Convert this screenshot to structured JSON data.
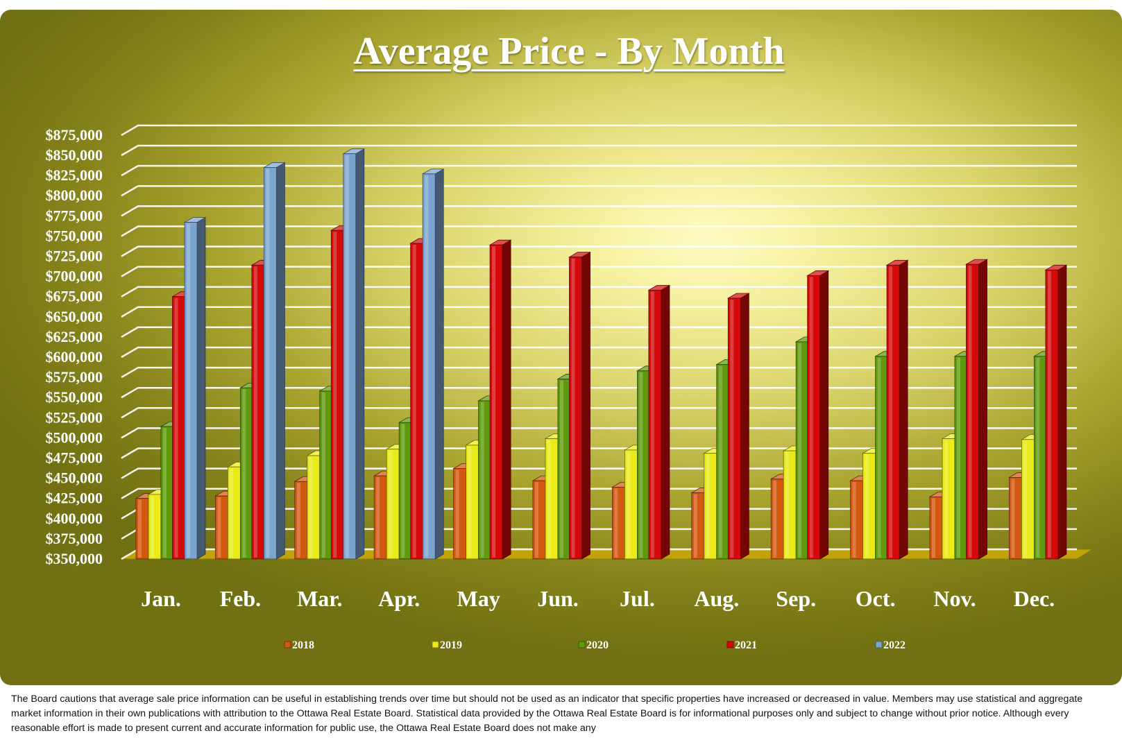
{
  "chart_data": {
    "type": "bar",
    "title": "Average Price - By Month",
    "categories": [
      "Jan.",
      "Feb.",
      "Mar.",
      "Apr.",
      "May",
      "Jun.",
      "Jul.",
      "Aug.",
      "Sep.",
      "Oct.",
      "Nov.",
      "Dec."
    ],
    "series": [
      {
        "name": "2018",
        "color": "#d2570f",
        "values": [
          425000,
          428000,
          446000,
          453000,
          462000,
          447000,
          439000,
          432000,
          449000,
          447000,
          427000,
          451000
        ]
      },
      {
        "name": "2019",
        "color": "#eaea18",
        "values": [
          430000,
          464000,
          478000,
          486000,
          491000,
          499000,
          485000,
          481000,
          484000,
          481000,
          499000,
          498000
        ]
      },
      {
        "name": "2020",
        "color": "#5e9a0c",
        "values": [
          514000,
          562000,
          558000,
          519000,
          546000,
          573000,
          583000,
          591000,
          619000,
          601000,
          601000,
          601000
        ]
      },
      {
        "name": "2021",
        "color": "#d40a0a",
        "values": [
          675000,
          714000,
          757000,
          741000,
          739000,
          724000,
          683000,
          673000,
          701000,
          714000,
          715000,
          708000
        ]
      },
      {
        "name": "2022",
        "color": "#7ba3cf",
        "values": [
          767000,
          835000,
          852000,
          827000,
          null,
          null,
          null,
          null,
          null,
          null,
          null,
          null
        ]
      }
    ],
    "ylim": [
      350000,
      875000
    ],
    "ytick_step": 25000,
    "ytick_labels": [
      "$350,000",
      "$375,000",
      "$400,000",
      "$425,000",
      "$450,000",
      "$475,000",
      "$500,000",
      "$525,000",
      "$550,000",
      "$575,000",
      "$600,000",
      "$625,000",
      "$650,000",
      "$675,000",
      "$700,000",
      "$725,000",
      "$750,000",
      "$775,000",
      "$800,000",
      "$825,000",
      "$850,000",
      "$875,000"
    ],
    "xlabel": "",
    "ylabel": "",
    "grid": true,
    "legend_position": "bottom"
  },
  "disclaimer": "The Board cautions that average sale price information can be useful in establishing trends over time but should not be used as an indicator that specific properties have increased or decreased in value.  Members may use statistical and aggregate market information in their own publications with attribution to the Ottawa Real Estate Board. Statistical data provided by the Ottawa Real Estate Board is for informational purposes only and subject to change without prior notice. Although every reasonable effort is made to present current and accurate information for public use, the Ottawa Real Estate Board does not make any"
}
